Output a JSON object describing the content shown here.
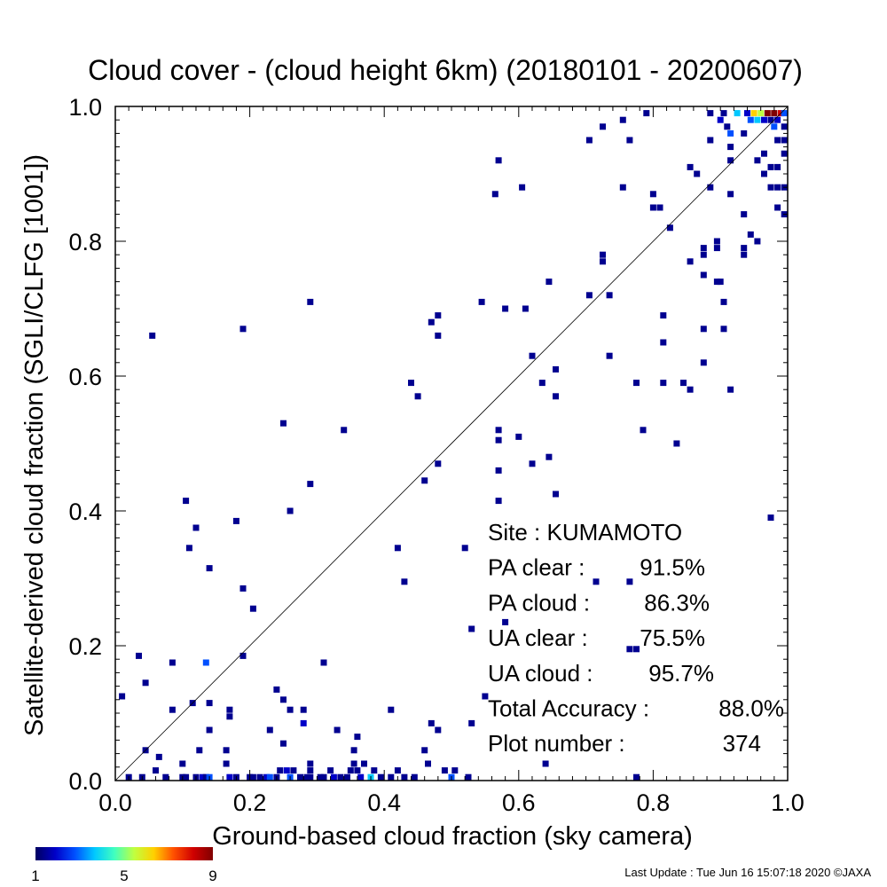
{
  "chart_data": {
    "type": "heatmap",
    "title": "Cloud cover - (cloud height 6km)  (20180101 - 20200607)",
    "xlabel": "Ground-based cloud fraction (sky camera)",
    "ylabel": "Satellite-derived cloud fraction (SGLI/CLFG [1001])",
    "xlim": [
      0,
      1
    ],
    "ylim": [
      0,
      1
    ],
    "xticks": [
      "0.0",
      "0.2",
      "0.4",
      "0.6",
      "0.8",
      "1.0"
    ],
    "yticks": [
      "0.0",
      "0.2",
      "0.4",
      "0.6",
      "0.8",
      "1.0"
    ],
    "grid": false,
    "reference_line": "1:1 diagonal",
    "stats": [
      {
        "label": "Site : KUMAMOTO",
        "value": ""
      },
      {
        "label": "PA clear :",
        "value": "91.5%"
      },
      {
        "label": "PA cloud :",
        "value": "86.3%"
      },
      {
        "label": "UA clear :",
        "value": "75.5%"
      },
      {
        "label": "UA cloud :",
        "value": "95.7%"
      },
      {
        "label": "Total Accuracy :",
        "value": "88.0%"
      },
      {
        "label": "Plot number :",
        "value": "374"
      }
    ],
    "colorbar": {
      "min": 1,
      "max": 9,
      "tick_labels": [
        "1",
        "5",
        "9"
      ],
      "colors": [
        "#000060",
        "#0000c8",
        "#0050ff",
        "#00c8ff",
        "#40ffc0",
        "#c0ff40",
        "#ffd000",
        "#ff5000",
        "#d00000",
        "#800000"
      ]
    },
    "points": [
      {
        "x": 0.01,
        "y": 0.125,
        "n": 1
      },
      {
        "x": 0.035,
        "y": 0.185,
        "n": 1
      },
      {
        "x": 0.045,
        "y": 0.145,
        "n": 1
      },
      {
        "x": 0.055,
        "y": 0.66,
        "n": 1
      },
      {
        "x": 0.045,
        "y": 0.045,
        "n": 1
      },
      {
        "x": 0.065,
        "y": 0.035,
        "n": 1
      },
      {
        "x": 0.06,
        "y": 0.015,
        "n": 1
      },
      {
        "x": 0.085,
        "y": 0.175,
        "n": 1
      },
      {
        "x": 0.085,
        "y": 0.105,
        "n": 1
      },
      {
        "x": 0.105,
        "y": 0.415,
        "n": 1
      },
      {
        "x": 0.11,
        "y": 0.345,
        "n": 1
      },
      {
        "x": 0.12,
        "y": 0.375,
        "n": 1
      },
      {
        "x": 0.115,
        "y": 0.115,
        "n": 1
      },
      {
        "x": 0.135,
        "y": 0.175,
        "n": 3
      },
      {
        "x": 0.14,
        "y": 0.315,
        "n": 1
      },
      {
        "x": 0.14,
        "y": 0.115,
        "n": 1
      },
      {
        "x": 0.14,
        "y": 0.075,
        "n": 1
      },
      {
        "x": 0.125,
        "y": 0.045,
        "n": 1
      },
      {
        "x": 0.1,
        "y": 0.025,
        "n": 1
      },
      {
        "x": 0.165,
        "y": 0.045,
        "n": 1
      },
      {
        "x": 0.17,
        "y": 0.105,
        "n": 1
      },
      {
        "x": 0.17,
        "y": 0.095,
        "n": 1
      },
      {
        "x": 0.165,
        "y": 0.025,
        "n": 1
      },
      {
        "x": 0.18,
        "y": 0.385,
        "n": 1
      },
      {
        "x": 0.19,
        "y": 0.67,
        "n": 1
      },
      {
        "x": 0.19,
        "y": 0.285,
        "n": 1
      },
      {
        "x": 0.19,
        "y": 0.185,
        "n": 1
      },
      {
        "x": 0.205,
        "y": 0.255,
        "n": 1
      },
      {
        "x": 0.23,
        "y": 0.075,
        "n": 1
      },
      {
        "x": 0.24,
        "y": 0.135,
        "n": 1
      },
      {
        "x": 0.25,
        "y": 0.53,
        "n": 1
      },
      {
        "x": 0.25,
        "y": 0.12,
        "n": 1
      },
      {
        "x": 0.25,
        "y": 0.055,
        "n": 1
      },
      {
        "x": 0.26,
        "y": 0.4,
        "n": 1
      },
      {
        "x": 0.26,
        "y": 0.105,
        "n": 1
      },
      {
        "x": 0.28,
        "y": 0.105,
        "n": 1
      },
      {
        "x": 0.28,
        "y": 0.085,
        "n": 2
      },
      {
        "x": 0.29,
        "y": 0.71,
        "n": 1
      },
      {
        "x": 0.29,
        "y": 0.44,
        "n": 1
      },
      {
        "x": 0.31,
        "y": 0.175,
        "n": 1
      },
      {
        "x": 0.33,
        "y": 0.075,
        "n": 1
      },
      {
        "x": 0.34,
        "y": 0.52,
        "n": 1
      },
      {
        "x": 0.355,
        "y": 0.045,
        "n": 1
      },
      {
        "x": 0.36,
        "y": 0.065,
        "n": 1
      },
      {
        "x": 0.355,
        "y": 0.025,
        "n": 1
      },
      {
        "x": 0.37,
        "y": 0.025,
        "n": 1
      },
      {
        "x": 0.41,
        "y": 0.105,
        "n": 1
      },
      {
        "x": 0.42,
        "y": 0.345,
        "n": 1
      },
      {
        "x": 0.43,
        "y": 0.295,
        "n": 1
      },
      {
        "x": 0.44,
        "y": 0.59,
        "n": 1
      },
      {
        "x": 0.45,
        "y": 0.57,
        "n": 1
      },
      {
        "x": 0.46,
        "y": 0.045,
        "n": 1
      },
      {
        "x": 0.46,
        "y": 0.445,
        "n": 1
      },
      {
        "x": 0.47,
        "y": 0.68,
        "n": 1
      },
      {
        "x": 0.48,
        "y": 0.69,
        "n": 1
      },
      {
        "x": 0.48,
        "y": 0.66,
        "n": 1
      },
      {
        "x": 0.48,
        "y": 0.47,
        "n": 1
      },
      {
        "x": 0.47,
        "y": 0.085,
        "n": 1
      },
      {
        "x": 0.48,
        "y": 0.075,
        "n": 1
      },
      {
        "x": 0.52,
        "y": 0.345,
        "n": 1
      },
      {
        "x": 0.53,
        "y": 0.225,
        "n": 1
      },
      {
        "x": 0.53,
        "y": 0.085,
        "n": 1
      },
      {
        "x": 0.545,
        "y": 0.71,
        "n": 1
      },
      {
        "x": 0.55,
        "y": 0.125,
        "n": 1
      },
      {
        "x": 0.565,
        "y": 0.87,
        "n": 1
      },
      {
        "x": 0.57,
        "y": 0.92,
        "n": 1
      },
      {
        "x": 0.57,
        "y": 0.52,
        "n": 1
      },
      {
        "x": 0.57,
        "y": 0.505,
        "n": 1
      },
      {
        "x": 0.57,
        "y": 0.46,
        "n": 1
      },
      {
        "x": 0.57,
        "y": 0.415,
        "n": 1
      },
      {
        "x": 0.58,
        "y": 0.7,
        "n": 1
      },
      {
        "x": 0.58,
        "y": 0.235,
        "n": 1
      },
      {
        "x": 0.6,
        "y": 0.51,
        "n": 1
      },
      {
        "x": 0.605,
        "y": 0.88,
        "n": 1
      },
      {
        "x": 0.61,
        "y": 0.7,
        "n": 1
      },
      {
        "x": 0.62,
        "y": 0.63,
        "n": 1
      },
      {
        "x": 0.62,
        "y": 0.47,
        "n": 1
      },
      {
        "x": 0.635,
        "y": 0.59,
        "n": 1
      },
      {
        "x": 0.64,
        "y": 0.025,
        "n": 1
      },
      {
        "x": 0.645,
        "y": 0.74,
        "n": 1
      },
      {
        "x": 0.645,
        "y": 0.48,
        "n": 1
      },
      {
        "x": 0.655,
        "y": 0.61,
        "n": 1
      },
      {
        "x": 0.655,
        "y": 0.57,
        "n": 1
      },
      {
        "x": 0.655,
        "y": 0.425,
        "n": 1
      },
      {
        "x": 0.705,
        "y": 0.95,
        "n": 1
      },
      {
        "x": 0.705,
        "y": 0.72,
        "n": 1
      },
      {
        "x": 0.715,
        "y": 0.295,
        "n": 1
      },
      {
        "x": 0.725,
        "y": 0.97,
        "n": 1
      },
      {
        "x": 0.725,
        "y": 0.78,
        "n": 1
      },
      {
        "x": 0.725,
        "y": 0.77,
        "n": 1
      },
      {
        "x": 0.735,
        "y": 0.72,
        "n": 1
      },
      {
        "x": 0.735,
        "y": 0.63,
        "n": 1
      },
      {
        "x": 0.755,
        "y": 0.98,
        "n": 1
      },
      {
        "x": 0.755,
        "y": 0.88,
        "n": 1
      },
      {
        "x": 0.765,
        "y": 0.95,
        "n": 1
      },
      {
        "x": 0.765,
        "y": 0.295,
        "n": 1
      },
      {
        "x": 0.765,
        "y": 0.195,
        "n": 1
      },
      {
        "x": 0.775,
        "y": 0.59,
        "n": 1
      },
      {
        "x": 0.775,
        "y": 0.005,
        "n": 1
      },
      {
        "x": 0.775,
        "y": 0.195,
        "n": 1
      },
      {
        "x": 0.785,
        "y": 0.52,
        "n": 1
      },
      {
        "x": 0.79,
        "y": 0.99,
        "n": 1
      },
      {
        "x": 0.8,
        "y": 0.87,
        "n": 1
      },
      {
        "x": 0.8,
        "y": 0.85,
        "n": 1
      },
      {
        "x": 0.81,
        "y": 0.85,
        "n": 1
      },
      {
        "x": 0.815,
        "y": 0.69,
        "n": 1
      },
      {
        "x": 0.815,
        "y": 0.65,
        "n": 1
      },
      {
        "x": 0.815,
        "y": 0.59,
        "n": 1
      },
      {
        "x": 0.825,
        "y": 0.82,
        "n": 1
      },
      {
        "x": 0.835,
        "y": 0.5,
        "n": 1
      },
      {
        "x": 0.845,
        "y": 0.59,
        "n": 1
      },
      {
        "x": 0.855,
        "y": 0.91,
        "n": 1
      },
      {
        "x": 0.855,
        "y": 0.77,
        "n": 1
      },
      {
        "x": 0.855,
        "y": 0.58,
        "n": 1
      },
      {
        "x": 0.865,
        "y": 0.9,
        "n": 1
      },
      {
        "x": 0.875,
        "y": 0.79,
        "n": 1
      },
      {
        "x": 0.875,
        "y": 0.78,
        "n": 1
      },
      {
        "x": 0.875,
        "y": 0.75,
        "n": 1
      },
      {
        "x": 0.875,
        "y": 0.67,
        "n": 1
      },
      {
        "x": 0.875,
        "y": 0.62,
        "n": 1
      },
      {
        "x": 0.885,
        "y": 0.88,
        "n": 1
      },
      {
        "x": 0.885,
        "y": 0.95,
        "n": 1
      },
      {
        "x": 0.885,
        "y": 0.99,
        "n": 1
      },
      {
        "x": 0.895,
        "y": 0.8,
        "n": 1
      },
      {
        "x": 0.895,
        "y": 0.79,
        "n": 1
      },
      {
        "x": 0.895,
        "y": 0.74,
        "n": 1
      },
      {
        "x": 0.9,
        "y": 0.74,
        "n": 1
      },
      {
        "x": 0.905,
        "y": 0.71,
        "n": 1
      },
      {
        "x": 0.905,
        "y": 0.67,
        "n": 1
      },
      {
        "x": 0.905,
        "y": 0.99,
        "n": 1
      },
      {
        "x": 0.9,
        "y": 0.98,
        "n": 2
      },
      {
        "x": 0.91,
        "y": 0.97,
        "n": 1
      },
      {
        "x": 0.915,
        "y": 0.94,
        "n": 1
      },
      {
        "x": 0.915,
        "y": 0.92,
        "n": 1
      },
      {
        "x": 0.915,
        "y": 0.87,
        "n": 1
      },
      {
        "x": 0.915,
        "y": 0.58,
        "n": 1
      },
      {
        "x": 0.915,
        "y": 0.96,
        "n": 3
      },
      {
        "x": 0.925,
        "y": 0.99,
        "n": 4
      },
      {
        "x": 0.935,
        "y": 0.84,
        "n": 1
      },
      {
        "x": 0.935,
        "y": 0.79,
        "n": 1
      },
      {
        "x": 0.935,
        "y": 0.78,
        "n": 1
      },
      {
        "x": 0.935,
        "y": 0.96,
        "n": 1
      },
      {
        "x": 0.94,
        "y": 0.99,
        "n": 2
      },
      {
        "x": 0.945,
        "y": 0.81,
        "n": 1
      },
      {
        "x": 0.945,
        "y": 0.98,
        "n": 3
      },
      {
        "x": 0.95,
        "y": 0.99,
        "n": 6
      },
      {
        "x": 0.955,
        "y": 0.92,
        "n": 1
      },
      {
        "x": 0.955,
        "y": 0.8,
        "n": 1
      },
      {
        "x": 0.955,
        "y": 0.98,
        "n": 4
      },
      {
        "x": 0.96,
        "y": 0.99,
        "n": 5
      },
      {
        "x": 0.965,
        "y": 0.93,
        "n": 1
      },
      {
        "x": 0.965,
        "y": 0.9,
        "n": 1
      },
      {
        "x": 0.965,
        "y": 0.98,
        "n": 2
      },
      {
        "x": 0.97,
        "y": 0.99,
        "n": 9
      },
      {
        "x": 0.975,
        "y": 0.91,
        "n": 1
      },
      {
        "x": 0.975,
        "y": 0.88,
        "n": 1
      },
      {
        "x": 0.975,
        "y": 0.39,
        "n": 1
      },
      {
        "x": 0.975,
        "y": 0.98,
        "n": 1
      },
      {
        "x": 0.98,
        "y": 0.97,
        "n": 3
      },
      {
        "x": 0.98,
        "y": 0.99,
        "n": 9
      },
      {
        "x": 0.985,
        "y": 0.95,
        "n": 1
      },
      {
        "x": 0.985,
        "y": 0.91,
        "n": 1
      },
      {
        "x": 0.985,
        "y": 0.88,
        "n": 1
      },
      {
        "x": 0.985,
        "y": 0.85,
        "n": 1
      },
      {
        "x": 0.985,
        "y": 0.98,
        "n": 2
      },
      {
        "x": 0.99,
        "y": 0.99,
        "n": 8
      },
      {
        "x": 0.995,
        "y": 0.97,
        "n": 1
      },
      {
        "x": 0.995,
        "y": 0.95,
        "n": 1
      },
      {
        "x": 0.995,
        "y": 0.93,
        "n": 1
      },
      {
        "x": 0.995,
        "y": 0.88,
        "n": 1
      },
      {
        "x": 0.995,
        "y": 0.84,
        "n": 1
      },
      {
        "x": 0.995,
        "y": 0.99,
        "n": 3
      },
      {
        "x": 0.02,
        "y": 0.005,
        "n": 1
      },
      {
        "x": 0.04,
        "y": 0.005,
        "n": 1
      },
      {
        "x": 0.075,
        "y": 0.005,
        "n": 1
      },
      {
        "x": 0.1,
        "y": 0.005,
        "n": 1
      },
      {
        "x": 0.105,
        "y": 0.005,
        "n": 1
      },
      {
        "x": 0.12,
        "y": 0.005,
        "n": 1
      },
      {
        "x": 0.13,
        "y": 0.005,
        "n": 2
      },
      {
        "x": 0.135,
        "y": 0.005,
        "n": 1
      },
      {
        "x": 0.14,
        "y": 0.005,
        "n": 3
      },
      {
        "x": 0.17,
        "y": 0.005,
        "n": 2
      },
      {
        "x": 0.18,
        "y": 0.005,
        "n": 1
      },
      {
        "x": 0.2,
        "y": 0.005,
        "n": 1
      },
      {
        "x": 0.205,
        "y": 0.005,
        "n": 1
      },
      {
        "x": 0.215,
        "y": 0.005,
        "n": 1
      },
      {
        "x": 0.225,
        "y": 0.005,
        "n": 2
      },
      {
        "x": 0.23,
        "y": 0.005,
        "n": 3
      },
      {
        "x": 0.24,
        "y": 0.005,
        "n": 1
      },
      {
        "x": 0.245,
        "y": 0.015,
        "n": 1
      },
      {
        "x": 0.255,
        "y": 0.015,
        "n": 2
      },
      {
        "x": 0.26,
        "y": 0.005,
        "n": 3
      },
      {
        "x": 0.265,
        "y": 0.015,
        "n": 1
      },
      {
        "x": 0.275,
        "y": 0.005,
        "n": 1
      },
      {
        "x": 0.285,
        "y": 0.005,
        "n": 1
      },
      {
        "x": 0.29,
        "y": 0.025,
        "n": 1
      },
      {
        "x": 0.29,
        "y": 0.015,
        "n": 1
      },
      {
        "x": 0.29,
        "y": 0.005,
        "n": 1
      },
      {
        "x": 0.305,
        "y": 0.005,
        "n": 1
      },
      {
        "x": 0.31,
        "y": 0.005,
        "n": 1
      },
      {
        "x": 0.32,
        "y": 0.015,
        "n": 1
      },
      {
        "x": 0.325,
        "y": 0.005,
        "n": 2
      },
      {
        "x": 0.335,
        "y": 0.005,
        "n": 1
      },
      {
        "x": 0.345,
        "y": 0.005,
        "n": 1
      },
      {
        "x": 0.35,
        "y": 0.015,
        "n": 1
      },
      {
        "x": 0.36,
        "y": 0.015,
        "n": 1
      },
      {
        "x": 0.365,
        "y": 0.005,
        "n": 2
      },
      {
        "x": 0.38,
        "y": 0.005,
        "n": 4
      },
      {
        "x": 0.385,
        "y": 0.015,
        "n": 1
      },
      {
        "x": 0.395,
        "y": 0.005,
        "n": 1
      },
      {
        "x": 0.41,
        "y": 0.005,
        "n": 1
      },
      {
        "x": 0.42,
        "y": 0.015,
        "n": 1
      },
      {
        "x": 0.43,
        "y": 0.005,
        "n": 1
      },
      {
        "x": 0.445,
        "y": 0.005,
        "n": 1
      },
      {
        "x": 0.465,
        "y": 0.025,
        "n": 1
      },
      {
        "x": 0.49,
        "y": 0.015,
        "n": 1
      },
      {
        "x": 0.5,
        "y": 0.005,
        "n": 3
      },
      {
        "x": 0.505,
        "y": 0.015,
        "n": 1
      },
      {
        "x": 0.525,
        "y": 0.005,
        "n": 1
      }
    ]
  },
  "footer": {
    "last_update": "Last Update : Tue Jun 16 15:07:18 2020  ©JAXA"
  }
}
